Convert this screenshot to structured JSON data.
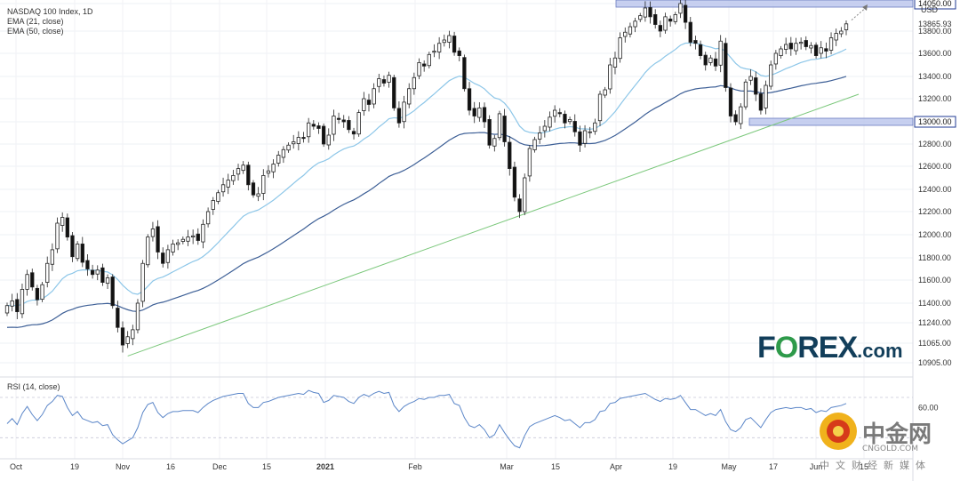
{
  "chart_data": [
    {
      "type": "candlestick",
      "title": "NASDAQ 100 Index, 1D",
      "currency": "USD",
      "indicators": [
        "EMA (21, close)",
        "EMA (50, close)"
      ],
      "y_ticks": [
        10905,
        11065,
        11240,
        11400,
        11600,
        11800,
        12000,
        12200,
        12400,
        12600,
        12800,
        13000,
        13200,
        13400,
        13600,
        13800,
        14050
      ],
      "y_tick_labels": [
        "10905.00",
        "11065.00",
        "11240.00",
        "11400.00",
        "11600.00",
        "11800.00",
        "12000.00",
        "12200.00",
        "12400.00",
        "12600.00",
        "12800.00",
        "13000.00",
        "13200.00",
        "13400.00",
        "13600.00",
        "13800.00",
        "14050.00"
      ],
      "x_labels": [
        "Oct",
        "19",
        "Nov",
        "16",
        "Dec",
        "15",
        "2021",
        "Feb",
        "Mar",
        "15",
        "Apr",
        "19",
        "May",
        "17",
        "Jun",
        "15"
      ],
      "last_price": "13865.93",
      "levels": [
        {
          "label": "14050.00",
          "value": 14050
        },
        {
          "label": "13000.00",
          "value": 13000
        }
      ],
      "closes": [
        11380,
        11420,
        11330,
        11520,
        11650,
        11540,
        11430,
        11560,
        11750,
        11870,
        12100,
        12150,
        11980,
        11810,
        11920,
        11760,
        11700,
        11650,
        11690,
        11580,
        11620,
        11380,
        11200,
        11050,
        11120,
        11180,
        11400,
        11750,
        11980,
        12050,
        11850,
        11750,
        11870,
        11920,
        11930,
        11960,
        11980,
        11990,
        11950,
        12090,
        12200,
        12300,
        12370,
        12440,
        12480,
        12520,
        12580,
        12610,
        12440,
        12350,
        12360,
        12520,
        12560,
        12620,
        12700,
        12750,
        12790,
        12820,
        12860,
        12850,
        12990,
        12960,
        12940,
        12800,
        12880,
        13050,
        13020,
        13000,
        12930,
        12890,
        13080,
        13200,
        13150,
        13290,
        13380,
        13340,
        13410,
        13120,
        12990,
        13170,
        13290,
        13390,
        13520,
        13490,
        13590,
        13620,
        13690,
        13720,
        13760,
        13610,
        13580,
        13290,
        13100,
        13050,
        13120,
        13000,
        12790,
        12850,
        13070,
        12820,
        12580,
        12330,
        12200,
        12500,
        12760,
        12840,
        12900,
        12960,
        13040,
        13100,
        13070,
        12990,
        13020,
        12910,
        12790,
        12920,
        12910,
        12990,
        13240,
        13280,
        13500,
        13560,
        13740,
        13790,
        13840,
        13890,
        13940,
        14010,
        13930,
        13860,
        13800,
        13930,
        13890,
        13950,
        14050,
        13880,
        13700,
        13690,
        13580,
        13500,
        13560,
        13490,
        13710,
        13300,
        13050,
        13000,
        13130,
        13350,
        13400,
        13240,
        13100,
        13320,
        13500,
        13600,
        13640,
        13680,
        13640,
        13690,
        13700,
        13660,
        13670,
        13580,
        13650,
        13620,
        13740,
        13780,
        13800,
        13866
      ],
      "rsi_panel": {
        "label": "RSI (14, close)",
        "y_tick_label": "60.00",
        "values": [
          44,
          49,
          43,
          54,
          61,
          53,
          47,
          53,
          62,
          66,
          72,
          71,
          60,
          52,
          56,
          49,
          47,
          45,
          46,
          42,
          43,
          33,
          28,
          24,
          27,
          30,
          40,
          55,
          63,
          65,
          55,
          50,
          54,
          56,
          56,
          57,
          57,
          57,
          55,
          60,
          64,
          67,
          69,
          71,
          72,
          73,
          74,
          74,
          64,
          60,
          60,
          65,
          66,
          68,
          70,
          71,
          72,
          73,
          74,
          73,
          77,
          75,
          74,
          65,
          67,
          72,
          71,
          70,
          66,
          64,
          70,
          73,
          71,
          74,
          76,
          74,
          75,
          62,
          56,
          61,
          64,
          66,
          69,
          68,
          70,
          70,
          72,
          72,
          73,
          64,
          62,
          50,
          42,
          40,
          43,
          38,
          30,
          33,
          43,
          35,
          28,
          22,
          20,
          32,
          41,
          44,
          46,
          48,
          50,
          52,
          50,
          47,
          48,
          44,
          40,
          45,
          45,
          48,
          56,
          57,
          64,
          65,
          69,
          70,
          71,
          72,
          73,
          74,
          71,
          68,
          66,
          69,
          68,
          69,
          72,
          65,
          58,
          58,
          55,
          52,
          54,
          52,
          58,
          46,
          38,
          36,
          40,
          48,
          50,
          45,
          40,
          48,
          55,
          58,
          59,
          60,
          59,
          60,
          60,
          58,
          59,
          55,
          57,
          56,
          60,
          61,
          62,
          64
        ]
      }
    }
  ],
  "brand": {
    "main": "F",
    "o": "O",
    "rest": "REX",
    "suffix": ".com"
  },
  "watermark": {
    "cn": "中金网",
    "en": "CNGOLD.COM",
    "sub": "中文财经新媒体"
  },
  "colors": {
    "ema21": "#8cc6e8",
    "ema50": "#3d5f96",
    "trend": "#7cc87c",
    "level": "#b9c4ec",
    "levelBorder": "#6a7cc0",
    "badge": "#1f3a93",
    "brand": "#123e5a",
    "brandAccent": "#2e9a4a",
    "rsi": "#5b86c8"
  }
}
